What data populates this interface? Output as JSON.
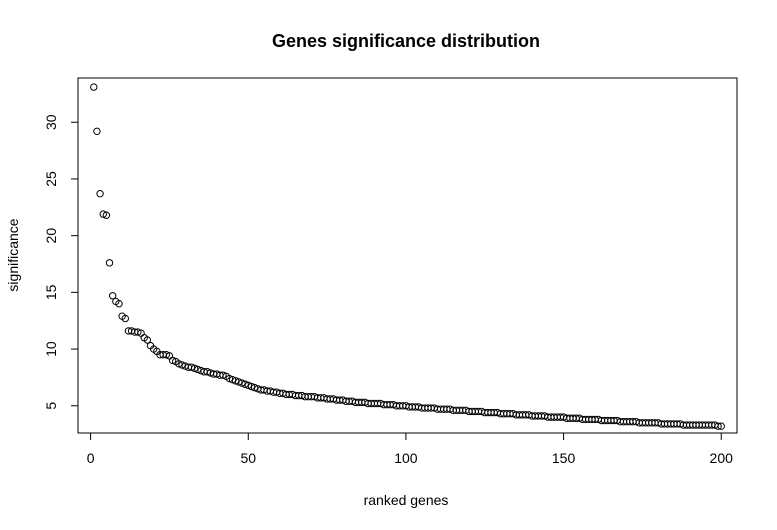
{
  "chart_data": {
    "type": "scatter",
    "title": "Genes significance distribution",
    "xlabel": "ranked genes",
    "ylabel": "significance",
    "xlim": [
      -4,
      205
    ],
    "ylim": [
      2.6,
      33.9
    ],
    "x_ticks": [
      0,
      50,
      100,
      150,
      200
    ],
    "y_ticks": [
      5,
      10,
      15,
      20,
      25,
      30
    ],
    "grid": false,
    "legend": "none",
    "point_color": "#000000",
    "series": [
      {
        "x": [
          1,
          2,
          3,
          4,
          5,
          6,
          7,
          8,
          9,
          10,
          11,
          12,
          13,
          14,
          15,
          16,
          17,
          18,
          19,
          20,
          21,
          22,
          23,
          24,
          25,
          26,
          27,
          28,
          29,
          30,
          31,
          32,
          33,
          34,
          35,
          36,
          37,
          38,
          39,
          40,
          41,
          42,
          43,
          44,
          45,
          46,
          47,
          48,
          49,
          50,
          51,
          52,
          53,
          54,
          55,
          56,
          57,
          58,
          59,
          60,
          61,
          62,
          63,
          64,
          65,
          66,
          67,
          68,
          69,
          70,
          71,
          72,
          73,
          74,
          75,
          76,
          77,
          78,
          79,
          80,
          81,
          82,
          83,
          84,
          85,
          86,
          87,
          88,
          89,
          90,
          91,
          92,
          93,
          94,
          95,
          96,
          97,
          98,
          99,
          100,
          101,
          102,
          103,
          104,
          105,
          106,
          107,
          108,
          109,
          110,
          111,
          112,
          113,
          114,
          115,
          116,
          117,
          118,
          119,
          120,
          121,
          122,
          123,
          124,
          125,
          126,
          127,
          128,
          129,
          130,
          131,
          132,
          133,
          134,
          135,
          136,
          137,
          138,
          139,
          140,
          141,
          142,
          143,
          144,
          145,
          146,
          147,
          148,
          149,
          150,
          151,
          152,
          153,
          154,
          155,
          156,
          157,
          158,
          159,
          160,
          161,
          162,
          163,
          164,
          165,
          166,
          167,
          168,
          169,
          170,
          171,
          172,
          173,
          174,
          175,
          176,
          177,
          178,
          179,
          180,
          181,
          182,
          183,
          184,
          185,
          186,
          187,
          188,
          189,
          190,
          191,
          192,
          193,
          194,
          195,
          196,
          197,
          198,
          199,
          200
        ],
        "y": [
          33.1,
          29.2,
          23.7,
          21.9,
          21.8,
          17.6,
          14.7,
          14.2,
          14.0,
          12.9,
          12.7,
          11.6,
          11.6,
          11.5,
          11.5,
          11.4,
          11.0,
          10.8,
          10.3,
          10.0,
          9.8,
          9.5,
          9.5,
          9.5,
          9.4,
          9.0,
          8.9,
          8.7,
          8.6,
          8.5,
          8.4,
          8.4,
          8.3,
          8.2,
          8.1,
          8.0,
          8.0,
          7.9,
          7.8,
          7.8,
          7.7,
          7.7,
          7.6,
          7.4,
          7.3,
          7.2,
          7.1,
          7.0,
          6.9,
          6.8,
          6.7,
          6.6,
          6.5,
          6.4,
          6.4,
          6.3,
          6.3,
          6.2,
          6.2,
          6.1,
          6.1,
          6.0,
          6.0,
          6.0,
          5.9,
          5.9,
          5.9,
          5.8,
          5.8,
          5.8,
          5.8,
          5.7,
          5.7,
          5.7,
          5.6,
          5.6,
          5.6,
          5.5,
          5.5,
          5.5,
          5.4,
          5.4,
          5.4,
          5.3,
          5.3,
          5.3,
          5.3,
          5.2,
          5.2,
          5.2,
          5.2,
          5.2,
          5.1,
          5.1,
          5.1,
          5.1,
          5.0,
          5.0,
          5.0,
          5.0,
          4.9,
          4.9,
          4.9,
          4.9,
          4.8,
          4.8,
          4.8,
          4.8,
          4.8,
          4.7,
          4.7,
          4.7,
          4.7,
          4.7,
          4.6,
          4.6,
          4.6,
          4.6,
          4.6,
          4.5,
          4.5,
          4.5,
          4.5,
          4.5,
          4.4,
          4.4,
          4.4,
          4.4,
          4.4,
          4.3,
          4.3,
          4.3,
          4.3,
          4.3,
          4.2,
          4.2,
          4.2,
          4.2,
          4.2,
          4.1,
          4.1,
          4.1,
          4.1,
          4.1,
          4.0,
          4.0,
          4.0,
          4.0,
          4.0,
          4.0,
          3.9,
          3.9,
          3.9,
          3.9,
          3.9,
          3.8,
          3.8,
          3.8,
          3.8,
          3.8,
          3.8,
          3.7,
          3.7,
          3.7,
          3.7,
          3.7,
          3.7,
          3.6,
          3.6,
          3.6,
          3.6,
          3.6,
          3.6,
          3.5,
          3.5,
          3.5,
          3.5,
          3.5,
          3.5,
          3.5,
          3.4,
          3.4,
          3.4,
          3.4,
          3.4,
          3.4,
          3.4,
          3.3,
          3.3,
          3.3,
          3.3,
          3.3,
          3.3,
          3.3,
          3.3,
          3.3,
          3.3,
          3.3,
          3.2,
          3.2
        ]
      }
    ]
  }
}
